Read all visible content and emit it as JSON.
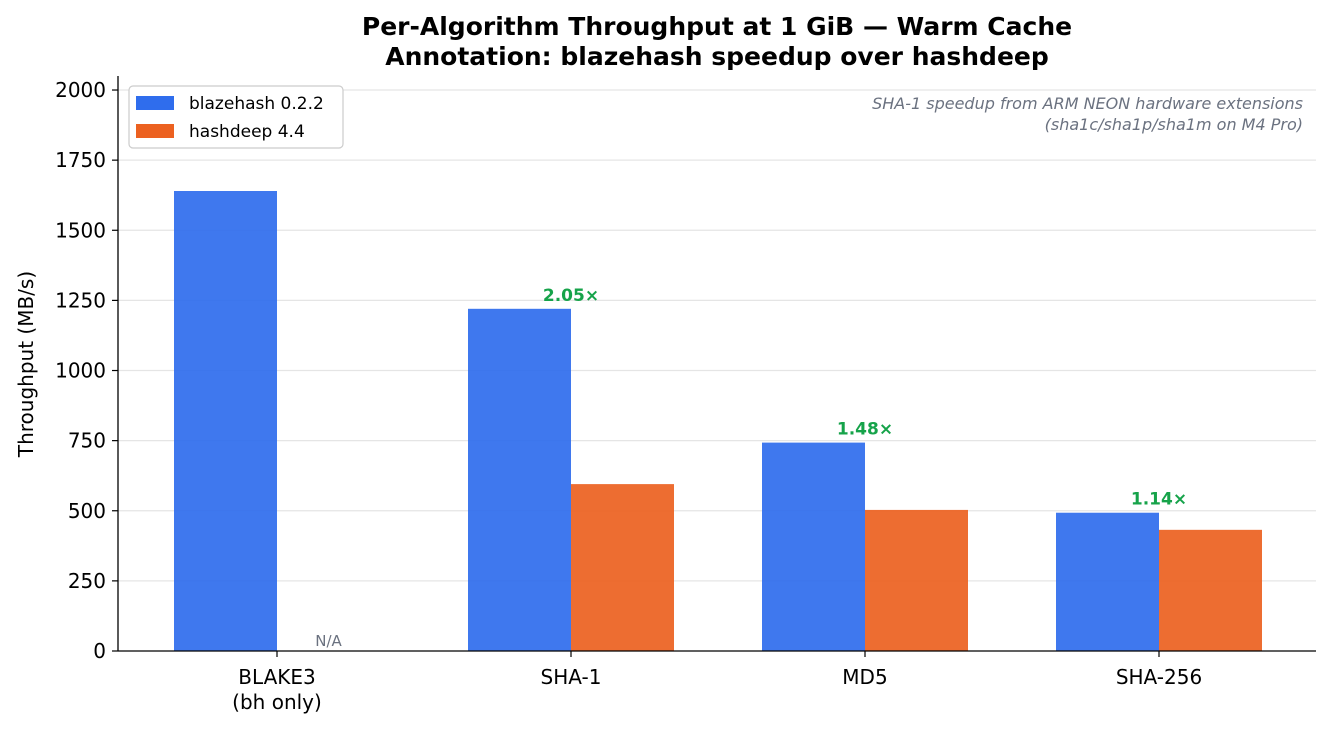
{
  "chart_data": {
    "type": "bar",
    "title": "Per-Algorithm Throughput at 1 GiB — Warm Cache",
    "subtitle": "Annotation: blazehash speedup over hashdeep",
    "xlabel": "",
    "ylabel": "Throughput (MB/s)",
    "ylim": [
      0,
      2050
    ],
    "yticks": [
      0,
      250,
      500,
      750,
      1000,
      1250,
      1500,
      1750,
      2000
    ],
    "grid": "horizontal",
    "legend_placement": "top-left",
    "categories": [
      "BLAKE3\n(bh only)",
      "SHA-1",
      "MD5",
      "SHA-256"
    ],
    "series": [
      {
        "name": "blazehash 0.2.2",
        "color": "#2f6ded",
        "values": [
          1640,
          1220,
          743,
          493
        ]
      },
      {
        "name": "hashdeep 4.4",
        "color": "#ec6120",
        "values": [
          null,
          595,
          503,
          432
        ]
      }
    ],
    "speedup_labels": [
      null,
      "2.05×",
      "1.48×",
      "1.14×"
    ],
    "speedup_color": "#16a34a",
    "missing_label": "N/A",
    "note_lines": [
      "SHA-1 speedup from ARM NEON hardware extensions",
      "(sha1c/sha1p/sha1m on M4 Pro)"
    ]
  }
}
